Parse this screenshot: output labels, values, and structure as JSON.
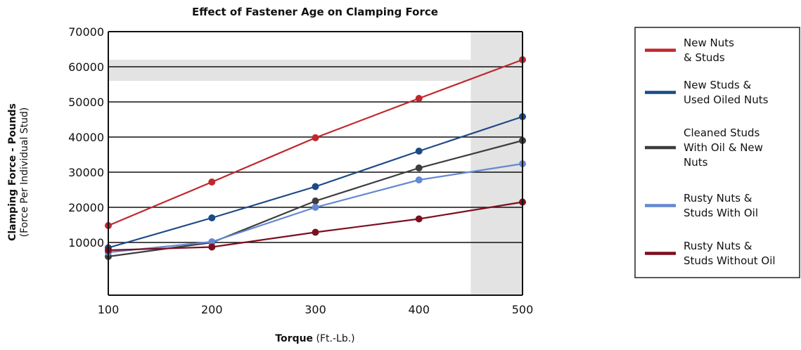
{
  "chart_data": {
    "type": "line",
    "title": "Effect of Fastener Age on Clamping Force",
    "xlabel_bold": "Torque",
    "xlabel_rest": " (Ft.-Lb.)",
    "ylabel_line1": "Clamping Force - Pounds",
    "ylabel_line2": "(Force Per Individual Stud)",
    "x": [
      100,
      200,
      300,
      400,
      500
    ],
    "xlim": [
      100,
      500
    ],
    "ylim": [
      -5000,
      70000
    ],
    "xticks": [
      "100",
      "200",
      "300",
      "400",
      "500"
    ],
    "yticks": [
      10000,
      20000,
      30000,
      40000,
      50000,
      60000,
      70000
    ],
    "ytick_labels": [
      "10000",
      "20000",
      "30000",
      "40000",
      "50000",
      "60000",
      "70000"
    ],
    "grid": true,
    "legend_position": "right",
    "shaded_bands": [
      {
        "axis": "y",
        "from": 56000,
        "to": 62000,
        "x_to": 450,
        "color": "#e3e3e3"
      },
      {
        "axis": "x",
        "from": 450,
        "to": 500,
        "color": "#e3e3e3"
      }
    ],
    "series": [
      {
        "name_lines": [
          "New Nuts",
          "& Studs"
        ],
        "color": "#c0272d",
        "values": [
          14800,
          27200,
          39800,
          51000,
          62000
        ]
      },
      {
        "name_lines": [
          "New Studs &",
          "Used Oiled Nuts"
        ],
        "color": "#1c4a86",
        "values": [
          8500,
          17000,
          25900,
          36000,
          45800
        ]
      },
      {
        "name_lines": [
          "Cleaned Studs",
          "With Oil & New",
          "Nuts"
        ],
        "color": "#3d3d3d",
        "values": [
          6000,
          10000,
          21800,
          31200,
          39000
        ]
      },
      {
        "name_lines": [
          "Rusty Nuts &",
          "Studs With Oil"
        ],
        "color": "#6488d4",
        "values": [
          7200,
          10200,
          20000,
          27800,
          32400
        ]
      },
      {
        "name_lines": [
          "Rusty Nuts &",
          "Studs Without Oil"
        ],
        "color": "#7d0e1e",
        "values": [
          7800,
          8700,
          12900,
          16700,
          21500
        ]
      }
    ]
  }
}
